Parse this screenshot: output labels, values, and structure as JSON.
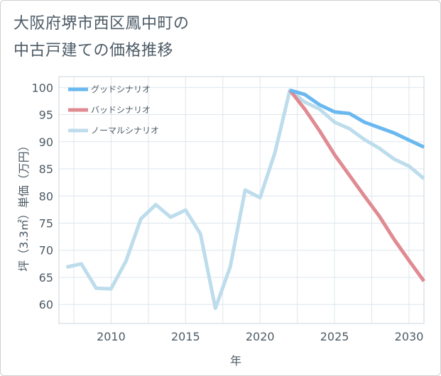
{
  "page": {
    "title_line1": "大阪府堺市西区鳳中町の",
    "title_line2": "中古戸建ての価格推移"
  },
  "chart_data": {
    "type": "line",
    "title": "大阪府堺市西区鳳中町の中古戸建ての価格推移",
    "xlabel": "年",
    "ylabel": "坪（3.3㎡）単価（万円）",
    "xlim": [
      2006.5,
      2031
    ],
    "ylim": [
      56.5,
      102
    ],
    "x_ticks": [
      2010,
      2015,
      2020,
      2025,
      2030
    ],
    "y_ticks": [
      60,
      65,
      70,
      75,
      80,
      85,
      90,
      95,
      100
    ],
    "grid": true,
    "legend_position": "top-left",
    "series": [
      {
        "name": "グッドシナリオ",
        "color": "#6ab8f0",
        "x": [
          2022,
          2023,
          2024,
          2025,
          2026,
          2027,
          2028,
          2029,
          2030,
          2031
        ],
        "values": [
          99.5,
          98.7,
          96.8,
          95.5,
          95.2,
          93.6,
          92.6,
          91.6,
          90.3,
          89.0
        ]
      },
      {
        "name": "バッドシナリオ",
        "color": "#e08a92",
        "x": [
          2022,
          2023,
          2024,
          2025,
          2026,
          2027,
          2028,
          2029,
          2030,
          2031
        ],
        "values": [
          99.5,
          96.0,
          92.0,
          87.6,
          83.8,
          80.0,
          76.3,
          72.0,
          68.1,
          64.3
        ]
      },
      {
        "name": "ノーマルシナリオ",
        "color": "#bddcec",
        "x": [
          2007,
          2008,
          2009,
          2010,
          2011,
          2012,
          2013,
          2014,
          2015,
          2016,
          2017,
          2018,
          2019,
          2020,
          2021,
          2022,
          2023,
          2024,
          2025,
          2026,
          2027,
          2028,
          2029,
          2030,
          2031
        ],
        "values": [
          66.9,
          67.5,
          63.0,
          62.9,
          68.0,
          75.8,
          78.4,
          76.1,
          77.4,
          73.0,
          59.3,
          67.0,
          81.1,
          79.7,
          88.0,
          99.5,
          97.3,
          96.0,
          93.6,
          92.4,
          90.4,
          88.8,
          86.8,
          85.5,
          83.2
        ]
      }
    ]
  }
}
